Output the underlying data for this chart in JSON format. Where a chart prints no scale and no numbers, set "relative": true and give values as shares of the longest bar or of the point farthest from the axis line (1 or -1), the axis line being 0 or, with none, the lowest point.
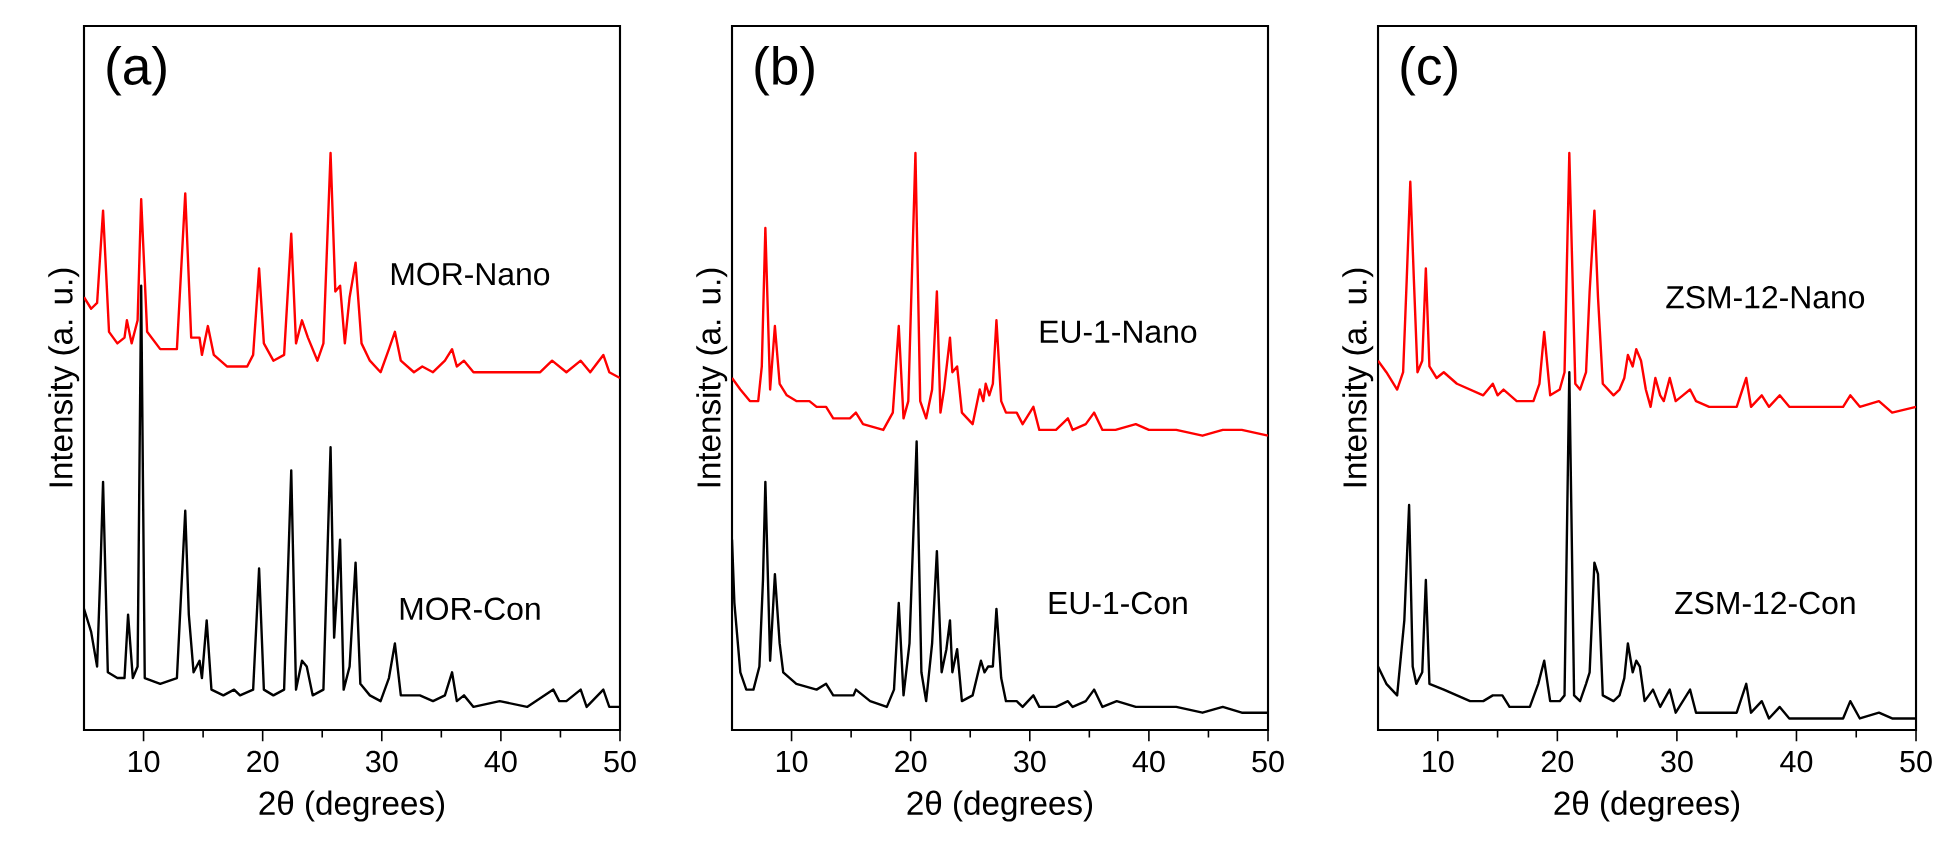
{
  "chart_data": [
    {
      "type": "line",
      "title": "(a)",
      "xlabel": "2θ (degrees)",
      "ylabel": "Intensity (a. u.)",
      "xlim": [
        5,
        50
      ],
      "xticks": [
        10,
        20,
        30,
        40,
        50
      ],
      "relative": true,
      "tick_labels": "x",
      "series": [
        {
          "name": "MOR-Nano",
          "color": "#ff0000",
          "x": [
            5.0,
            5.6,
            6.1,
            6.6,
            7.1,
            7.8,
            8.4,
            8.6,
            9.0,
            9.5,
            9.8,
            10.3,
            11.4,
            12.8,
            13.5,
            14.0,
            14.7,
            14.9,
            15.4,
            15.9,
            17.0,
            18.7,
            19.2,
            19.7,
            20.1,
            20.9,
            21.8,
            22.4,
            22.8,
            23.3,
            23.8,
            24.6,
            25.1,
            25.7,
            26.1,
            26.5,
            26.9,
            27.3,
            27.8,
            28.3,
            29.0,
            29.9,
            30.6,
            31.1,
            31.6,
            32.7,
            33.4,
            34.3,
            35.3,
            35.9,
            36.3,
            36.9,
            37.7,
            39.4,
            41.0,
            43.3,
            44.3,
            44.9,
            45.5,
            46.7,
            47.5,
            48.6,
            49.1,
            50.0
          ],
          "values": [
            0.75,
            0.73,
            0.74,
            0.9,
            0.69,
            0.67,
            0.68,
            0.71,
            0.67,
            0.71,
            0.92,
            0.69,
            0.66,
            0.66,
            0.93,
            0.68,
            0.68,
            0.65,
            0.7,
            0.65,
            0.63,
            0.63,
            0.65,
            0.8,
            0.67,
            0.64,
            0.65,
            0.86,
            0.67,
            0.71,
            0.68,
            0.64,
            0.67,
            1.0,
            0.76,
            0.77,
            0.67,
            0.75,
            0.81,
            0.67,
            0.64,
            0.62,
            0.66,
            0.69,
            0.64,
            0.62,
            0.63,
            0.62,
            0.64,
            0.66,
            0.63,
            0.64,
            0.62,
            0.62,
            0.62,
            0.62,
            0.64,
            0.63,
            0.62,
            0.64,
            0.62,
            0.65,
            0.62,
            0.61
          ]
        },
        {
          "name": "MOR-Con",
          "color": "#000000",
          "x": [
            5.0,
            5.6,
            6.1,
            6.4,
            6.6,
            7.0,
            7.8,
            8.4,
            8.7,
            9.1,
            9.5,
            9.8,
            10.1,
            11.4,
            12.8,
            13.5,
            13.8,
            14.2,
            14.7,
            14.9,
            15.3,
            15.7,
            16.7,
            17.6,
            18.1,
            19.2,
            19.7,
            20.1,
            20.9,
            21.8,
            22.4,
            22.8,
            23.3,
            23.7,
            24.2,
            25.1,
            25.7,
            26.0,
            26.5,
            26.8,
            27.3,
            27.8,
            28.2,
            29.0,
            29.9,
            30.6,
            31.1,
            31.6,
            33.2,
            34.3,
            35.3,
            35.9,
            36.3,
            36.9,
            37.7,
            39.9,
            42.2,
            44.4,
            44.9,
            45.5,
            46.7,
            47.2,
            48.6,
            49.1,
            50.0
          ],
          "values": [
            0.21,
            0.17,
            0.11,
            0.29,
            0.43,
            0.1,
            0.09,
            0.09,
            0.2,
            0.09,
            0.11,
            0.77,
            0.09,
            0.08,
            0.09,
            0.38,
            0.2,
            0.1,
            0.12,
            0.09,
            0.19,
            0.07,
            0.06,
            0.07,
            0.06,
            0.07,
            0.28,
            0.07,
            0.06,
            0.07,
            0.45,
            0.07,
            0.12,
            0.11,
            0.06,
            0.07,
            0.49,
            0.16,
            0.33,
            0.07,
            0.11,
            0.29,
            0.08,
            0.06,
            0.05,
            0.09,
            0.15,
            0.06,
            0.06,
            0.05,
            0.06,
            0.1,
            0.05,
            0.06,
            0.04,
            0.05,
            0.04,
            0.07,
            0.05,
            0.05,
            0.07,
            0.04,
            0.07,
            0.04,
            0.04
          ]
        }
      ]
    },
    {
      "type": "line",
      "title": "(b)",
      "xlabel": "2θ (degrees)",
      "ylabel": "Intensity (a. u.)",
      "xlim": [
        5,
        50
      ],
      "xticks": [
        10,
        20,
        30,
        40,
        50
      ],
      "relative": true,
      "tick_labels": "x",
      "series": [
        {
          "name": "EU-1-Nano",
          "color": "#ff0000",
          "x": [
            5.0,
            5.7,
            6.5,
            7.2,
            7.5,
            7.8,
            8.2,
            8.6,
            9.0,
            9.6,
            10.4,
            11.5,
            12.1,
            12.9,
            13.5,
            14.9,
            15.4,
            16.0,
            17.7,
            18.5,
            19.0,
            19.4,
            19.8,
            20.4,
            20.8,
            21.3,
            21.8,
            22.2,
            22.5,
            22.8,
            23.3,
            23.5,
            23.9,
            24.3,
            25.2,
            25.8,
            26.1,
            26.3,
            26.6,
            26.9,
            27.2,
            27.6,
            28.0,
            28.9,
            29.4,
            30.3,
            30.8,
            32.2,
            33.2,
            33.6,
            34.7,
            35.4,
            36.1,
            37.2,
            38.9,
            40.0,
            42.3,
            44.5,
            46.2,
            47.8,
            50.0
          ],
          "values": [
            0.61,
            0.59,
            0.57,
            0.57,
            0.63,
            0.87,
            0.59,
            0.7,
            0.6,
            0.58,
            0.57,
            0.57,
            0.56,
            0.56,
            0.54,
            0.54,
            0.55,
            0.53,
            0.52,
            0.55,
            0.7,
            0.54,
            0.57,
            1.0,
            0.57,
            0.54,
            0.59,
            0.76,
            0.55,
            0.59,
            0.68,
            0.62,
            0.63,
            0.55,
            0.53,
            0.59,
            0.57,
            0.6,
            0.58,
            0.6,
            0.71,
            0.57,
            0.55,
            0.55,
            0.53,
            0.56,
            0.52,
            0.52,
            0.54,
            0.52,
            0.53,
            0.55,
            0.52,
            0.52,
            0.53,
            0.52,
            0.52,
            0.51,
            0.52,
            0.52,
            0.51
          ]
        },
        {
          "name": "EU-1-Con",
          "color": "#000000",
          "x": [
            5.0,
            5.2,
            5.7,
            6.2,
            6.8,
            7.3,
            7.6,
            7.8,
            8.2,
            8.6,
            9.0,
            9.3,
            10.4,
            12.1,
            12.9,
            13.5,
            15.2,
            15.4,
            16.6,
            18.0,
            18.6,
            19.0,
            19.4,
            19.9,
            20.5,
            20.9,
            21.3,
            21.8,
            22.2,
            22.6,
            23.0,
            23.3,
            23.5,
            23.9,
            24.3,
            25.2,
            25.9,
            26.2,
            26.5,
            26.9,
            27.2,
            27.6,
            28.0,
            28.9,
            29.4,
            30.3,
            30.8,
            32.2,
            33.2,
            33.6,
            34.7,
            35.4,
            36.1,
            37.3,
            38.9,
            40.0,
            42.3,
            44.5,
            46.2,
            47.8,
            50.0
          ],
          "values": [
            0.33,
            0.22,
            0.1,
            0.07,
            0.07,
            0.11,
            0.26,
            0.43,
            0.12,
            0.27,
            0.15,
            0.1,
            0.08,
            0.07,
            0.08,
            0.06,
            0.06,
            0.07,
            0.05,
            0.04,
            0.07,
            0.22,
            0.06,
            0.15,
            0.5,
            0.1,
            0.05,
            0.15,
            0.31,
            0.1,
            0.14,
            0.19,
            0.1,
            0.14,
            0.05,
            0.06,
            0.12,
            0.1,
            0.11,
            0.11,
            0.21,
            0.09,
            0.05,
            0.05,
            0.04,
            0.06,
            0.04,
            0.04,
            0.05,
            0.04,
            0.05,
            0.07,
            0.04,
            0.05,
            0.04,
            0.04,
            0.04,
            0.03,
            0.04,
            0.03,
            0.03
          ]
        }
      ]
    },
    {
      "type": "line",
      "title": "(c)",
      "xlabel": "2θ (degrees)",
      "ylabel": "Intensity (a. u.)",
      "xlim": [
        5,
        50
      ],
      "xticks": [
        10,
        20,
        30,
        40,
        50
      ],
      "relative": true,
      "tick_labels": "x",
      "series": [
        {
          "name": "ZSM-12-Nano",
          "color": "#ff0000",
          "x": [
            5.0,
            5.7,
            6.6,
            7.1,
            7.4,
            7.7,
            8.0,
            8.3,
            8.7,
            9.0,
            9.3,
            9.9,
            10.5,
            11.6,
            13.8,
            14.6,
            15.0,
            15.5,
            16.6,
            18.0,
            18.5,
            18.9,
            19.4,
            20.2,
            20.6,
            21.0,
            21.5,
            21.9,
            22.4,
            22.7,
            23.1,
            23.4,
            23.8,
            24.7,
            25.2,
            25.6,
            25.9,
            26.3,
            26.6,
            27.0,
            27.4,
            27.8,
            28.2,
            28.6,
            28.9,
            29.4,
            29.9,
            30.5,
            31.1,
            31.6,
            32.7,
            33.8,
            35.0,
            35.8,
            36.2,
            37.1,
            37.7,
            38.6,
            39.4,
            41.6,
            43.9,
            44.5,
            45.3,
            46.9,
            48.0,
            50.0
          ],
          "values": [
            0.64,
            0.62,
            0.59,
            0.62,
            0.78,
            0.95,
            0.78,
            0.62,
            0.64,
            0.8,
            0.63,
            0.61,
            0.62,
            0.6,
            0.58,
            0.6,
            0.58,
            0.59,
            0.57,
            0.57,
            0.6,
            0.69,
            0.58,
            0.59,
            0.62,
            1.0,
            0.6,
            0.59,
            0.62,
            0.76,
            0.9,
            0.75,
            0.6,
            0.58,
            0.59,
            0.61,
            0.65,
            0.63,
            0.66,
            0.64,
            0.59,
            0.56,
            0.61,
            0.58,
            0.57,
            0.61,
            0.57,
            0.58,
            0.59,
            0.57,
            0.56,
            0.56,
            0.56,
            0.61,
            0.56,
            0.58,
            0.56,
            0.58,
            0.56,
            0.56,
            0.56,
            0.58,
            0.56,
            0.57,
            0.55,
            0.56
          ]
        },
        {
          "name": "ZSM-12-Con",
          "color": "#000000",
          "x": [
            5.0,
            5.7,
            6.6,
            7.2,
            7.6,
            7.9,
            8.2,
            8.7,
            9.0,
            9.3,
            10.5,
            12.7,
            13.8,
            14.6,
            15.4,
            16.0,
            17.7,
            18.4,
            18.9,
            19.4,
            20.2,
            20.6,
            21.0,
            21.4,
            21.9,
            22.4,
            22.7,
            23.1,
            23.4,
            23.8,
            24.7,
            25.2,
            25.6,
            25.9,
            26.3,
            26.6,
            26.9,
            27.3,
            28.0,
            28.6,
            29.4,
            29.9,
            30.5,
            31.1,
            31.6,
            33.8,
            35.0,
            35.8,
            36.2,
            37.1,
            37.7,
            38.6,
            39.4,
            41.6,
            43.9,
            44.5,
            45.3,
            46.9,
            48.0,
            50.0
          ],
          "values": [
            0.11,
            0.08,
            0.06,
            0.19,
            0.39,
            0.11,
            0.08,
            0.1,
            0.26,
            0.08,
            0.07,
            0.05,
            0.05,
            0.06,
            0.06,
            0.04,
            0.04,
            0.08,
            0.12,
            0.05,
            0.05,
            0.06,
            0.62,
            0.06,
            0.05,
            0.08,
            0.1,
            0.29,
            0.27,
            0.06,
            0.05,
            0.06,
            0.09,
            0.15,
            0.1,
            0.12,
            0.11,
            0.05,
            0.07,
            0.04,
            0.07,
            0.03,
            0.05,
            0.07,
            0.03,
            0.03,
            0.03,
            0.08,
            0.03,
            0.05,
            0.02,
            0.04,
            0.02,
            0.02,
            0.02,
            0.05,
            0.02,
            0.03,
            0.02,
            0.02
          ]
        }
      ]
    }
  ]
}
